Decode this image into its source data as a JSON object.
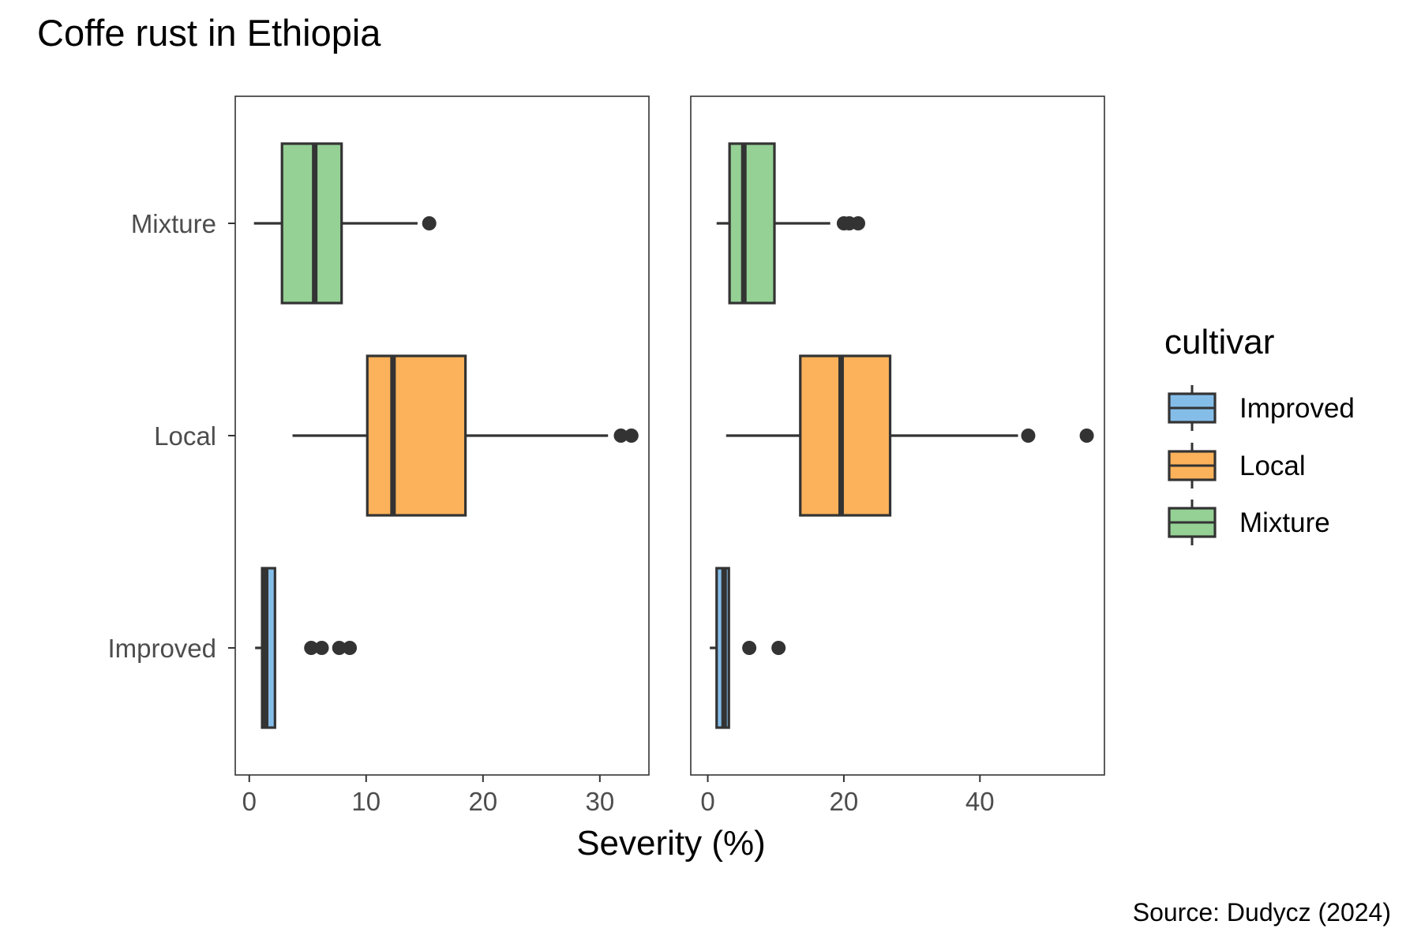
{
  "title": "Coffe rust in Ethiopia",
  "caption": "Source: Dudycz (2024)",
  "colors": {
    "Improved": "#85bde9",
    "Local": "#fbb25a",
    "Mixture": "#95d095",
    "outline": "#333333",
    "tick_text": "#4d4d4d"
  },
  "chart_data": {
    "type": "boxplot",
    "orientation": "horizontal",
    "xlabel": "Severity (%)",
    "categories": [
      "Improved",
      "Local",
      "Mixture"
    ],
    "legend": {
      "title": "cultivar",
      "entries": [
        "Improved",
        "Local",
        "Mixture"
      ],
      "placement": "right"
    },
    "grid": false,
    "panels": [
      {
        "xlim": [
          -1.2,
          34.2
        ],
        "xticks": [
          0,
          10,
          20,
          30
        ],
        "boxes": [
          {
            "cultivar": "Improved",
            "min": 0.5,
            "q1": 1.1,
            "median": 1.4,
            "q3": 2.2,
            "max": 2.2,
            "outliers": [
              5.3,
              6.2,
              7.7,
              8.6
            ]
          },
          {
            "cultivar": "Local",
            "min": 3.7,
            "q1": 10.1,
            "median": 12.3,
            "q3": 18.5,
            "max": 30.7,
            "outliers": [
              31.8,
              32.7
            ]
          },
          {
            "cultivar": "Mixture",
            "min": 0.4,
            "q1": 2.8,
            "median": 5.6,
            "q3": 7.9,
            "max": 14.4,
            "outliers": [
              15.4
            ]
          }
        ]
      },
      {
        "xlim": [
          -2.5,
          58.3
        ],
        "xticks": [
          0,
          20,
          40
        ],
        "boxes": [
          {
            "cultivar": "Improved",
            "min": 0.3,
            "q1": 1.3,
            "median": 2.4,
            "q3": 3.1,
            "max": 3.1,
            "outliers": [
              6.1,
              10.4
            ]
          },
          {
            "cultivar": "Local",
            "min": 2.7,
            "q1": 13.6,
            "median": 19.6,
            "q3": 26.8,
            "max": 45.6,
            "outliers": [
              47.1,
              55.7
            ]
          },
          {
            "cultivar": "Mixture",
            "min": 1.3,
            "q1": 3.2,
            "median": 5.3,
            "q3": 9.8,
            "max": 18.0,
            "outliers": [
              20.0,
              20.8,
              22.1
            ]
          }
        ]
      }
    ]
  }
}
